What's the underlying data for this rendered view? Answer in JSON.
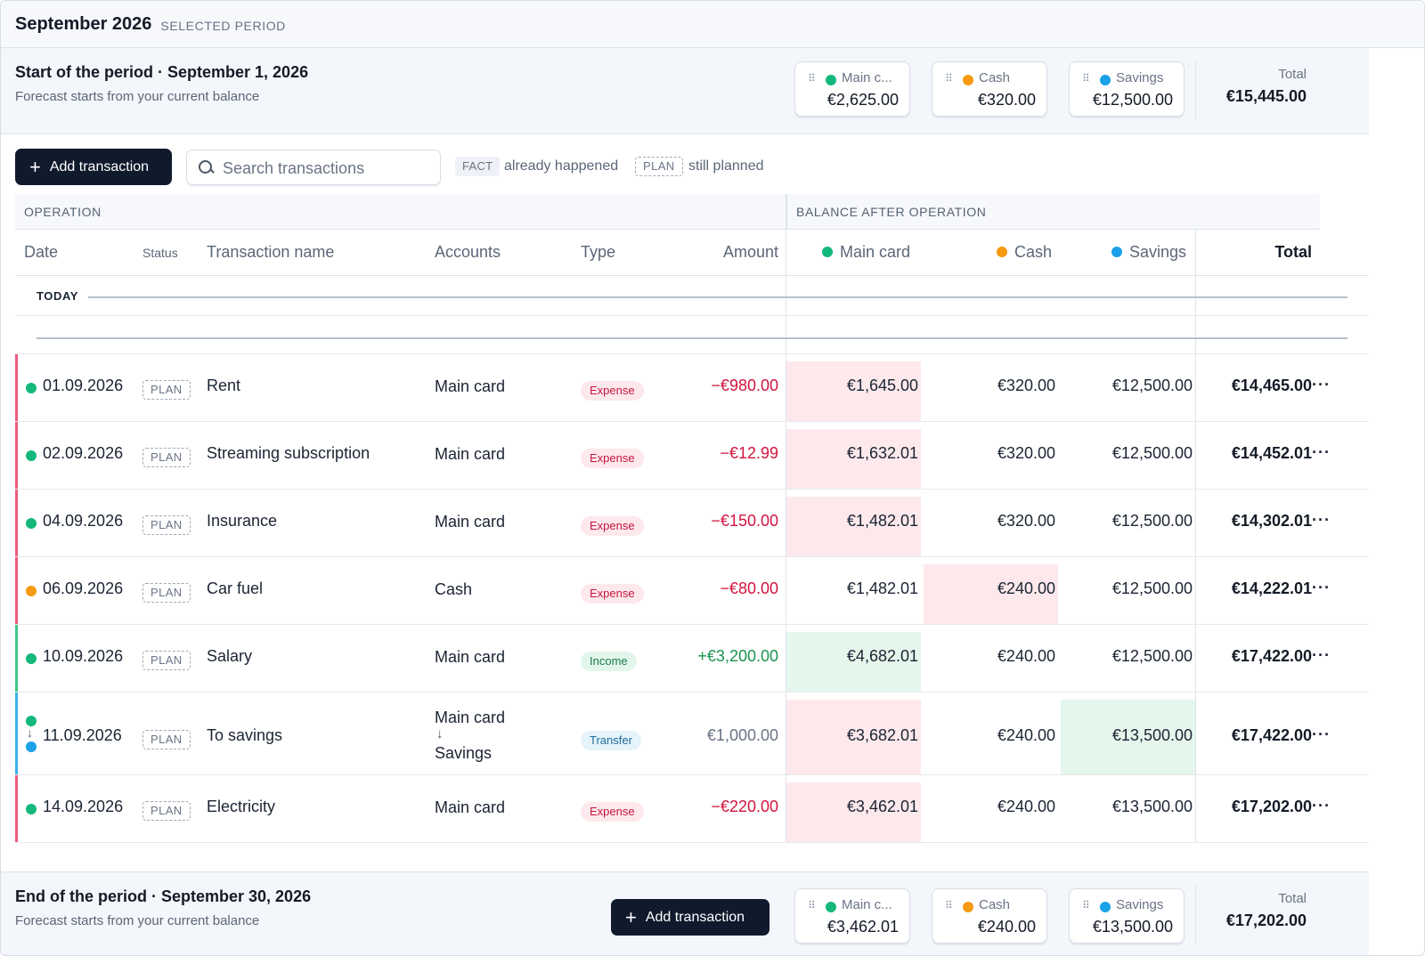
{
  "header": {
    "title": "September 2026",
    "subtitle": "SELECTED PERIOD"
  },
  "start": {
    "title": "Start of the period · September 1, 2026",
    "subtitle": "Forecast starts from your current balance",
    "accounts": [
      {
        "name": "Main c...",
        "value": "€2,625.00",
        "color": "#13b87a"
      },
      {
        "name": "Cash",
        "value": "€320.00",
        "color": "#f59a12"
      },
      {
        "name": "Savings",
        "value": "€12,500.00",
        "color": "#1aa1e8"
      }
    ],
    "total_label": "Total",
    "total_value": "€15,445.00"
  },
  "toolbar": {
    "add_label": "Add transaction",
    "search_placeholder": "Search transactions",
    "fact_tag": "FACT",
    "fact_text": "already happened",
    "plan_tag": "PLAN",
    "plan_text": "still planned"
  },
  "table": {
    "group_operation": "OPERATION",
    "group_balance": "BALANCE AFTER OPERATION",
    "columns": {
      "date": "Date",
      "status": "Status",
      "name": "Transaction name",
      "accounts": "Accounts",
      "type": "Type",
      "amount": "Amount",
      "main": "Main card",
      "cash": "Cash",
      "savings": "Savings",
      "total": "Total"
    },
    "today_label": "TODAY",
    "menu_glyph": "···",
    "rows": [
      {
        "date": "01.09.2026",
        "status": "PLAN",
        "name": "Rent",
        "account": "Main card",
        "type": "Expense",
        "amount": "−€980.00",
        "main": "€1,645.00",
        "cash": "€320.00",
        "savings": "€12,500.00",
        "total": "€14,465.00"
      },
      {
        "date": "02.09.2026",
        "status": "PLAN",
        "name": "Streaming subscription",
        "account": "Main card",
        "type": "Expense",
        "amount": "−€12.99",
        "main": "€1,632.01",
        "cash": "€320.00",
        "savings": "€12,500.00",
        "total": "€14,452.01"
      },
      {
        "date": "04.09.2026",
        "status": "PLAN",
        "name": "Insurance",
        "account": "Main card",
        "type": "Expense",
        "amount": "−€150.00",
        "main": "€1,482.01",
        "cash": "€320.00",
        "savings": "€12,500.00",
        "total": "€14,302.01"
      },
      {
        "date": "06.09.2026",
        "status": "PLAN",
        "name": "Car fuel",
        "account": "Cash",
        "type": "Expense",
        "amount": "−€80.00",
        "main": "€1,482.01",
        "cash": "€240.00",
        "savings": "€12,500.00",
        "total": "€14,222.01"
      },
      {
        "date": "10.09.2026",
        "status": "PLAN",
        "name": "Salary",
        "account": "Main card",
        "type": "Income",
        "amount": "+€3,200.00",
        "main": "€4,682.01",
        "cash": "€240.00",
        "savings": "€12,500.00",
        "total": "€17,422.00"
      },
      {
        "date": "11.09.2026",
        "status": "PLAN",
        "name": "To savings",
        "account_from": "Main card",
        "account_to": "Savings",
        "type": "Transfer",
        "amount": "€1,000.00",
        "main": "€3,682.01",
        "cash": "€240.00",
        "savings": "€13,500.00",
        "total": "€17,422.00"
      },
      {
        "date": "14.09.2026",
        "status": "PLAN",
        "name": "Electricity",
        "account": "Main card",
        "type": "Expense",
        "amount": "−€220.00",
        "main": "€3,462.01",
        "cash": "€240.00",
        "savings": "€13,500.00",
        "total": "€17,202.00"
      }
    ]
  },
  "end": {
    "title": "End of the period · September 30, 2026",
    "subtitle": "Forecast starts from your current balance",
    "add_label": "Add transaction",
    "accounts": [
      {
        "name": "Main c...",
        "value": "€3,462.01",
        "color": "#13b87a"
      },
      {
        "name": "Cash",
        "value": "€240.00",
        "color": "#f59a12"
      },
      {
        "name": "Savings",
        "value": "€13,500.00",
        "color": "#1aa1e8"
      }
    ],
    "total_label": "Total",
    "total_value": "€17,202.00"
  },
  "colors": {
    "main": "#13b87a",
    "cash": "#f59a12",
    "savings": "#1aa1e8",
    "expense_accent": "#ee5a7c",
    "income_accent": "#3ec98a",
    "transfer_accent": "#38b3ee"
  }
}
